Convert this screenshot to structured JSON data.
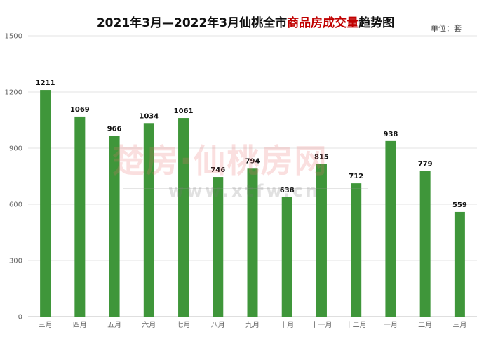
{
  "chart_data": {
    "type": "bar",
    "title_parts": [
      "2021年3月—2022年3月仙桃全市",
      "商品房成交量",
      "趋势图"
    ],
    "unit_label": "单位：套",
    "categories": [
      "三月",
      "四月",
      "五月",
      "六月",
      "七月",
      "八月",
      "九月",
      "十月",
      "十一月",
      "十二月",
      "一月",
      "二月",
      "三月"
    ],
    "values": [
      1211,
      1069,
      966,
      1034,
      1061,
      746,
      794,
      638,
      815,
      712,
      938,
      779,
      559
    ],
    "ylim": [
      0,
      1500
    ],
    "yticks": [
      0,
      300,
      600,
      900,
      1200,
      1500
    ],
    "grid": true,
    "legend": "none",
    "bar_color": "#3f963a",
    "title_highlight_color": "#c00000"
  },
  "watermark": {
    "text_main": "楚房·仙桃房网",
    "text_url": "www.xtfw.cn"
  }
}
